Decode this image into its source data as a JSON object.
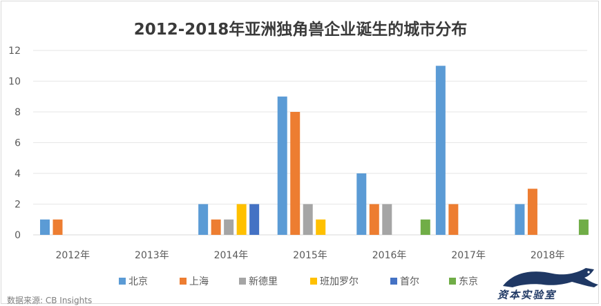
{
  "chart_data": {
    "type": "bar",
    "title": "2012-2018年亚洲独角兽企业诞生的城市分布",
    "categories": [
      "2012年",
      "2013年",
      "2014年",
      "2015年",
      "2016年",
      "2017年",
      "2018年"
    ],
    "series": [
      {
        "name": "北京",
        "color": "#5b9bd5",
        "values": [
          1,
          0,
          2,
          9,
          4,
          11,
          2
        ]
      },
      {
        "name": "上海",
        "color": "#ed7d31",
        "values": [
          1,
          0,
          1,
          8,
          2,
          2,
          3
        ]
      },
      {
        "name": "新德里",
        "color": "#a5a5a5",
        "values": [
          0,
          0,
          1,
          2,
          2,
          0,
          0
        ]
      },
      {
        "name": "班加罗尔",
        "color": "#ffc000",
        "values": [
          0,
          0,
          2,
          1,
          0,
          0,
          0
        ]
      },
      {
        "name": "首尔",
        "color": "#4472c4",
        "values": [
          0,
          0,
          2,
          0,
          0,
          0,
          0
        ]
      },
      {
        "name": "东京",
        "color": "#70ad47",
        "values": [
          0,
          0,
          0,
          0,
          1,
          0,
          1
        ]
      }
    ],
    "ylim": [
      0,
      12
    ],
    "yticks": [
      0,
      2,
      4,
      6,
      8,
      10,
      12
    ],
    "grid": true,
    "legend": "bottom"
  },
  "source": "数据来源: CB Insights",
  "watermark": "资本实验室"
}
